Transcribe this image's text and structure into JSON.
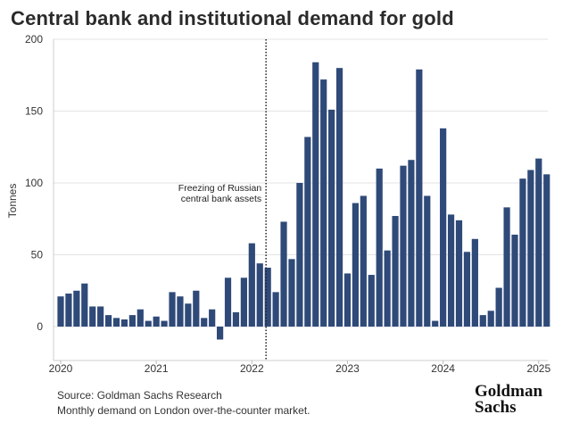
{
  "chart_data": {
    "type": "bar",
    "title": "Central bank and institutional demand for gold",
    "ylabel": "Tonnes",
    "xlabel": "",
    "ylim": [
      -25,
      200
    ],
    "yticks": [
      0,
      50,
      100,
      150,
      200
    ],
    "xticks": [
      "2020",
      "2021",
      "2022",
      "2023",
      "2024",
      "2025"
    ],
    "grid": true,
    "bar_color": "#2f4a78",
    "start_month": "2020-01",
    "values": [
      21,
      23,
      25,
      30,
      14,
      14,
      8,
      6,
      5,
      8,
      12,
      4,
      7,
      4,
      24,
      21,
      16,
      25,
      6,
      12,
      -9,
      34,
      10,
      34,
      58,
      44,
      41,
      24,
      73,
      47,
      100,
      132,
      184,
      172,
      151,
      180,
      37,
      86,
      91,
      36,
      110,
      53,
      77,
      112,
      116,
      179,
      91,
      4,
      138,
      78,
      74,
      52,
      61,
      8,
      11,
      27,
      83,
      64,
      103,
      109,
      117,
      106
    ],
    "annotation": {
      "lines": [
        "Freezing of Russian",
        "central bank assets"
      ],
      "month": "2022-03"
    }
  },
  "footer": {
    "source": "Source: Goldman Sachs Research",
    "note": "Monthly demand on London over-the-counter market."
  },
  "logo": {
    "line1": "Goldman",
    "line2": "Sachs"
  }
}
